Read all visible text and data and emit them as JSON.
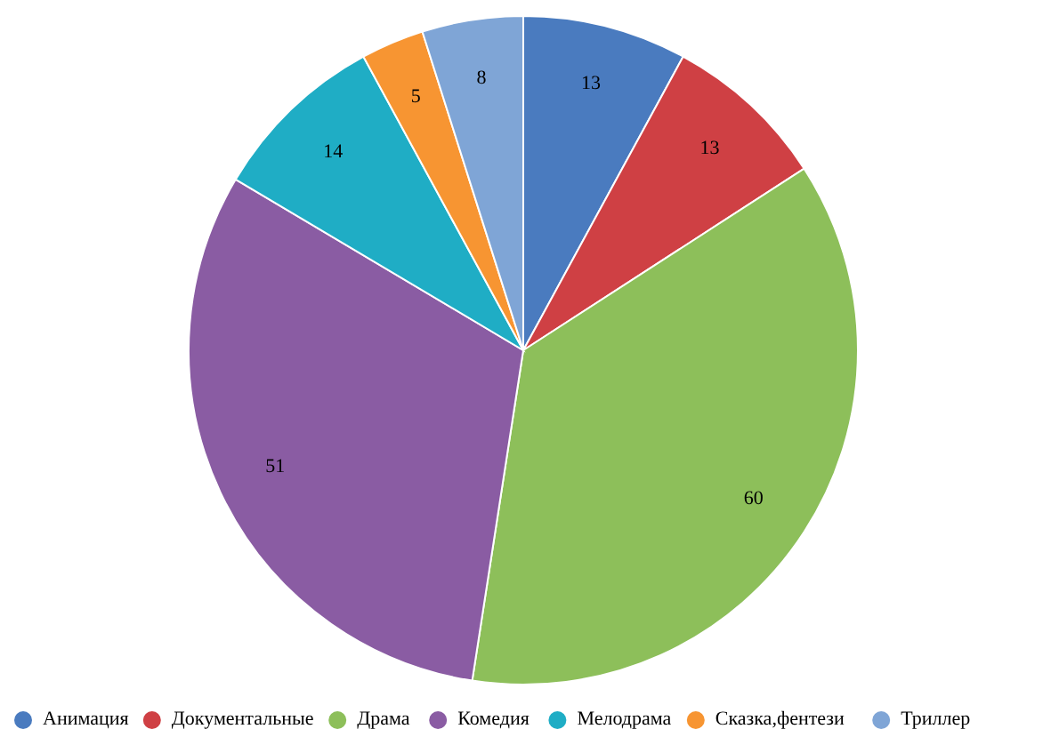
{
  "chart_data": {
    "type": "pie",
    "categories": [
      "Анимация",
      "Документальные",
      "Драма",
      "Комедия",
      "Мелодрама",
      "Сказка,фентези",
      "Триллер"
    ],
    "values": [
      13,
      13,
      60,
      51,
      14,
      5,
      8
    ],
    "colors": [
      "#4a7bbf",
      "#cf4044",
      "#8dbf5a",
      "#8a5ca3",
      "#1fadc5",
      "#f79532",
      "#7fa5d6"
    ],
    "data_labels": true,
    "legend": "bottom"
  }
}
